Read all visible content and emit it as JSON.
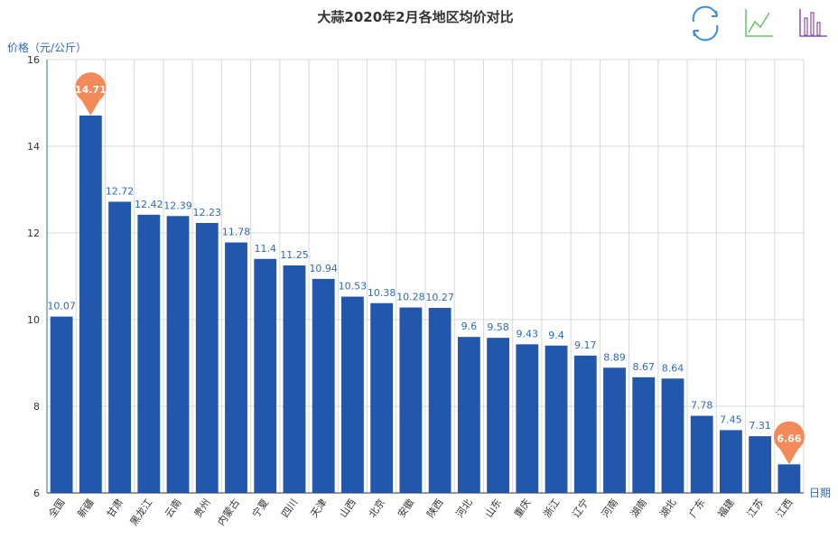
{
  "chart_data": {
    "type": "bar",
    "title": "大蒜2020年2月各地区均价对比",
    "ylabel": "价格（元/公斤）",
    "xlabel": "日期",
    "ylim": [
      6,
      16
    ],
    "yticks": [
      6,
      8,
      10,
      12,
      14,
      16
    ],
    "grid": true,
    "bar_color": "#2257AC",
    "label_color": "#2E6CB0",
    "marker_color": "#F28A5A",
    "categories": [
      "全国",
      "新疆",
      "甘肃",
      "黑龙江",
      "云南",
      "贵州",
      "内蒙古",
      "宁夏",
      "四川",
      "天津",
      "山西",
      "北京",
      "安徽",
      "陕西",
      "河北",
      "山东",
      "重庆",
      "浙江",
      "辽宁",
      "河南",
      "湖南",
      "湖北",
      "广东",
      "福建",
      "江苏",
      "江西"
    ],
    "values": [
      10.07,
      14.71,
      12.72,
      12.42,
      12.39,
      12.23,
      11.78,
      11.4,
      11.25,
      10.94,
      10.53,
      10.38,
      10.28,
      10.27,
      9.6,
      9.58,
      9.43,
      9.4,
      9.17,
      8.89,
      8.67,
      8.64,
      7.78,
      7.45,
      7.31,
      6.66
    ],
    "value_labels": [
      "10.07",
      "14.71",
      "12.72",
      "12.42",
      "12.39",
      "12.23",
      "11.78",
      "11.4",
      "11.25",
      "10.94",
      "10.53",
      "10.38",
      "10.28",
      "10.27",
      "9.6",
      "9.58",
      "9.43",
      "9.4",
      "9.17",
      "8.89",
      "8.67",
      "8.64",
      "7.78",
      "7.45",
      "7.31",
      "6.66"
    ],
    "mark_points": [
      {
        "type": "max",
        "label": "14.71"
      },
      {
        "type": "min",
        "label": "6.66"
      }
    ]
  },
  "toolbox": {
    "icons": [
      "restore-icon",
      "line-chart-icon",
      "bar-chart-icon"
    ],
    "colors": [
      "#3B8FD9",
      "#69C06A",
      "#8B4FA8"
    ]
  }
}
